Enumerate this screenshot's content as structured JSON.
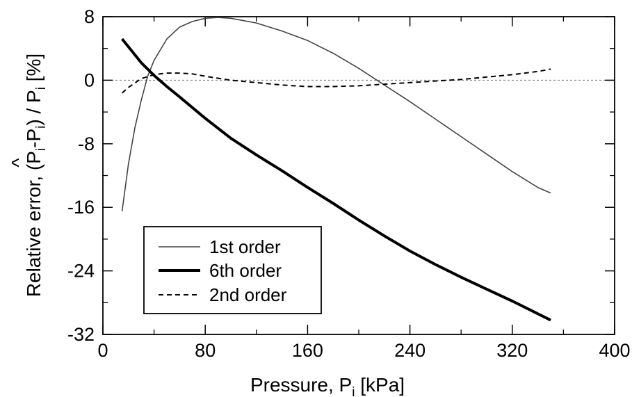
{
  "chart_data": {
    "type": "line",
    "title": "",
    "xlabel": "Pressure, P",
    "xlabel_sub": "i",
    "xlabel_unit": " [kPa]",
    "ylabel": "Relative error, (P̂i-Pi) / Pi [%]",
    "ylabel_parts": {
      "prefix": "Relative error, (P",
      "sub1": "i",
      "mid1": "-P",
      "sub2": "i",
      "mid2": ") / P",
      "sub3": "i",
      "suffix": " [%]",
      "hat": "^"
    },
    "xlim": [
      0,
      400
    ],
    "ylim": [
      -32,
      8
    ],
    "xticks": [
      0,
      80,
      160,
      240,
      320,
      400
    ],
    "yticks": [
      8,
      0,
      -8,
      -16,
      -24,
      -32
    ],
    "reference_line_y": 0,
    "grid": false,
    "legend_position": "bottom-left",
    "series": [
      {
        "name": "1st order",
        "style": "thin-solid",
        "color": "#444444",
        "x": [
          15,
          20,
          25,
          30,
          35,
          40,
          50,
          60,
          70,
          80,
          90,
          100,
          120,
          140,
          160,
          180,
          200,
          220,
          240,
          260,
          280,
          300,
          320,
          340,
          350
        ],
        "y": [
          -16.5,
          -10.5,
          -6,
          -2.5,
          0.5,
          2.5,
          5.2,
          6.7,
          7.4,
          7.8,
          7.9,
          7.8,
          7.2,
          6.2,
          5,
          3.4,
          1.5,
          -0.6,
          -2.7,
          -4.9,
          -7.1,
          -9.3,
          -11.5,
          -13.5,
          -14.2
        ]
      },
      {
        "name": "6th order",
        "style": "thick-solid",
        "color": "#000000",
        "x": [
          15,
          20,
          30,
          40,
          50,
          60,
          80,
          100,
          120,
          140,
          160,
          180,
          200,
          220,
          240,
          260,
          280,
          300,
          320,
          340,
          350
        ],
        "y": [
          5.2,
          4.2,
          2.2,
          0.6,
          -0.8,
          -2.1,
          -4.8,
          -7.3,
          -9.4,
          -11.4,
          -13.5,
          -15.5,
          -17.6,
          -19.6,
          -21.5,
          -23.2,
          -24.8,
          -26.3,
          -27.8,
          -29.4,
          -30.2
        ]
      },
      {
        "name": "2nd order",
        "style": "dashed",
        "color": "#000000",
        "x": [
          15,
          20,
          30,
          40,
          50,
          60,
          70,
          80,
          100,
          120,
          140,
          160,
          180,
          200,
          220,
          240,
          260,
          280,
          300,
          320,
          340,
          350
        ],
        "y": [
          -1.6,
          -0.9,
          0.2,
          0.7,
          0.9,
          0.9,
          0.8,
          0.5,
          0,
          -0.3,
          -0.6,
          -0.8,
          -0.8,
          -0.7,
          -0.5,
          -0.3,
          -0.1,
          0.1,
          0.4,
          0.7,
          1.1,
          1.4
        ]
      }
    ]
  }
}
